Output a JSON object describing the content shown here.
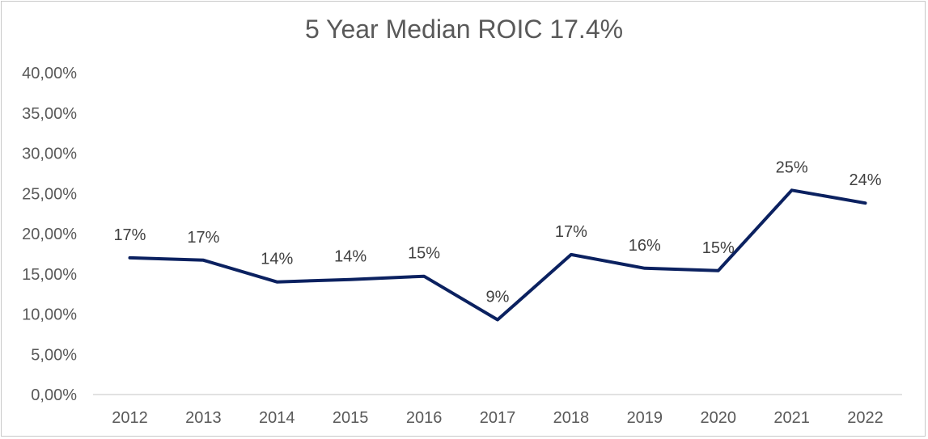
{
  "chart_data": {
    "type": "line",
    "title": "5 Year Median ROIC 17.4%",
    "xlabel": "",
    "ylabel": "",
    "categories": [
      "2012",
      "2013",
      "2014",
      "2015",
      "2016",
      "2017",
      "2018",
      "2019",
      "2020",
      "2021",
      "2022"
    ],
    "values": [
      17.0,
      16.7,
      14.0,
      14.3,
      14.7,
      9.3,
      17.4,
      15.7,
      15.4,
      25.4,
      23.8
    ],
    "data_labels": [
      "17%",
      "17%",
      "14%",
      "14%",
      "15%",
      "9%",
      "17%",
      "16%",
      "15%",
      "25%",
      "24%"
    ],
    "ylim": [
      0,
      40
    ],
    "yticks": [
      0,
      5,
      10,
      15,
      20,
      25,
      30,
      35,
      40
    ],
    "ytick_labels": [
      "0,00%",
      "5,00%",
      "10,00%",
      "15,00%",
      "20,00%",
      "25,00%",
      "30,00%",
      "35,00%",
      "40,00%"
    ],
    "grid": false,
    "legend": "none",
    "colors": {
      "line": "#0b2160",
      "text": "#595959",
      "axis": "#d9d9d9"
    }
  }
}
